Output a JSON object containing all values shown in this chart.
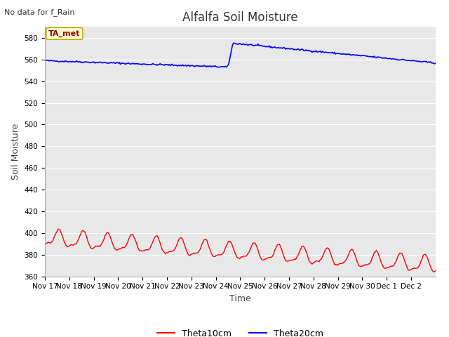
{
  "title": "Alfalfa Soil Moisture",
  "top_left_text": "No data for f_Rain",
  "ylabel": "Soil Moisture",
  "xlabel": "Time",
  "ylim": [
    360,
    590
  ],
  "yticks": [
    360,
    380,
    400,
    420,
    440,
    460,
    480,
    500,
    520,
    540,
    560,
    580
  ],
  "xtick_labels": [
    "Nov 17",
    "Nov 18",
    "Nov 19",
    "Nov 20",
    "Nov 21",
    "Nov 22",
    "Nov 23",
    "Nov 24",
    "Nov 25",
    "Nov 26",
    "Nov 27",
    "Nov 28",
    "Nov 29",
    "Nov 30",
    "Dec 1",
    "Dec 2"
  ],
  "legend_labels": [
    "Theta10cm",
    "Theta20cm"
  ],
  "legend_colors": [
    "#ff0000",
    "#0000ff"
  ],
  "ta_met_label": "TA_met",
  "ta_met_bg": "#ffffcc",
  "ta_met_fg": "#990000",
  "fig_bg_color": "#ffffff",
  "plot_bg_color": "#e8e8e8",
  "grid_color": "#ffffff",
  "title_fontsize": 12,
  "axis_label_fontsize": 9,
  "tick_fontsize": 7.5
}
